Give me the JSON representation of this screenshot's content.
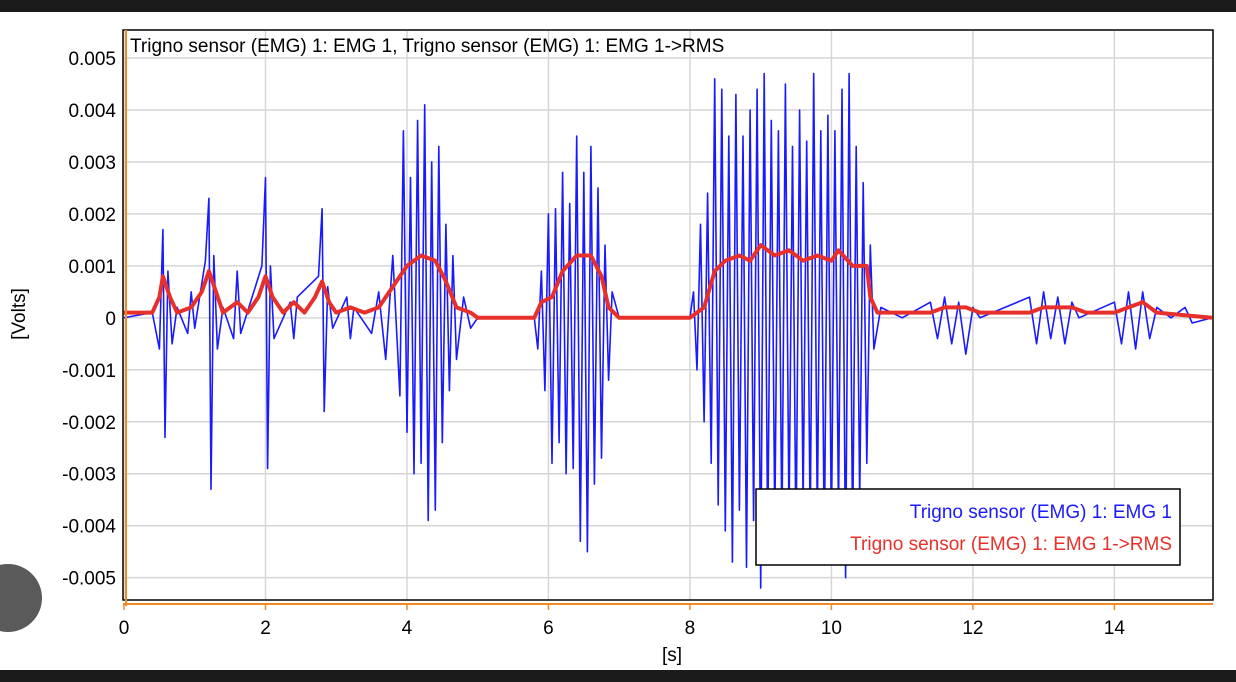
{
  "chart_data": {
    "type": "line",
    "title": "Trigno sensor (EMG) 1: EMG 1, Trigno sensor (EMG) 1: EMG 1->RMS",
    "xlabel": "[s]",
    "ylabel": "[Volts]",
    "xlim": [
      0,
      15.38
    ],
    "ylim": [
      -0.00543,
      0.00552
    ],
    "xticks": [
      0,
      2,
      4,
      6,
      8,
      10,
      12,
      14
    ],
    "yticks": [
      0.005,
      0.004,
      0.003,
      0.002,
      0.001,
      0,
      -0.001,
      -0.002,
      -0.003,
      -0.004,
      -0.005
    ],
    "grid": true,
    "legend": "lower right",
    "series": [
      {
        "name": "Trigno sensor (EMG) 1: EMG 1",
        "color": "#1a1aff",
        "x": [
          0,
          0.4,
          0.5,
          0.55,
          0.58,
          0.62,
          0.68,
          0.75,
          0.9,
          0.95,
          1.0,
          1.15,
          1.2,
          1.23,
          1.27,
          1.32,
          1.4,
          1.55,
          1.6,
          1.65,
          1.95,
          2.0,
          2.03,
          2.07,
          2.12,
          2.35,
          2.4,
          2.45,
          2.75,
          2.8,
          2.83,
          2.88,
          2.95,
          3.15,
          3.2,
          3.25,
          3.5,
          3.6,
          3.7,
          3.8,
          3.9,
          3.95,
          4.0,
          4.05,
          4.1,
          4.15,
          4.2,
          4.25,
          4.3,
          4.35,
          4.4,
          4.45,
          4.5,
          4.55,
          4.6,
          4.65,
          4.7,
          4.8,
          4.9,
          5.0,
          5.8,
          5.85,
          5.9,
          5.95,
          6.0,
          6.05,
          6.1,
          6.15,
          6.2,
          6.25,
          6.3,
          6.35,
          6.4,
          6.45,
          6.5,
          6.55,
          6.6,
          6.65,
          6.7,
          6.75,
          6.8,
          6.85,
          6.9,
          7.0,
          8.0,
          8.05,
          8.1,
          8.15,
          8.2,
          8.25,
          8.3,
          8.35,
          8.4,
          8.45,
          8.5,
          8.55,
          8.6,
          8.65,
          8.7,
          8.75,
          8.8,
          8.85,
          8.9,
          8.95,
          9.0,
          9.05,
          9.1,
          9.15,
          9.2,
          9.25,
          9.3,
          9.35,
          9.4,
          9.45,
          9.5,
          9.55,
          9.6,
          9.65,
          9.7,
          9.75,
          9.8,
          9.85,
          9.9,
          9.95,
          10.0,
          10.05,
          10.1,
          10.15,
          10.2,
          10.25,
          10.3,
          10.35,
          10.4,
          10.45,
          10.5,
          10.55,
          10.6,
          10.7,
          11.0,
          11.4,
          11.5,
          11.6,
          11.7,
          11.8,
          11.9,
          12.0,
          12.1,
          12.8,
          12.9,
          13.0,
          13.1,
          13.2,
          13.3,
          13.4,
          13.5,
          14.0,
          14.1,
          14.2,
          14.3,
          14.4,
          14.5,
          14.6,
          14.8,
          15.0,
          15.1,
          15.38
        ],
        "values": [
          0,
          0.0001,
          -0.0006,
          0.0017,
          -0.0023,
          0.0009,
          -0.0005,
          0.0002,
          -0.0003,
          0.0005,
          -0.0002,
          0.0011,
          0.0023,
          -0.0033,
          0.0012,
          -0.0006,
          0.0002,
          -0.0004,
          0.0009,
          -0.0003,
          0.001,
          0.0027,
          -0.0029,
          0.001,
          -0.0004,
          0.0003,
          -0.0004,
          0.0004,
          0.0008,
          0.0021,
          -0.0018,
          0.0006,
          -0.0002,
          0.0004,
          -0.0004,
          0.0002,
          -0.0003,
          0.0005,
          -0.0008,
          0.0012,
          -0.0015,
          0.0036,
          -0.0022,
          0.0027,
          -0.003,
          0.0038,
          -0.0028,
          0.0041,
          -0.0039,
          0.003,
          -0.0037,
          0.0033,
          -0.0024,
          0.0018,
          -0.0014,
          0.0012,
          -0.0008,
          0.0004,
          -0.0002,
          0,
          0,
          -0.0006,
          0.0009,
          -0.0014,
          0.002,
          -0.0028,
          0.0021,
          -0.0024,
          0.0028,
          -0.003,
          0.0022,
          -0.0029,
          0.0035,
          -0.0043,
          0.0028,
          -0.0045,
          0.0033,
          -0.0032,
          0.0025,
          -0.0027,
          0.0014,
          -0.0012,
          0.0005,
          0,
          0,
          0.0005,
          -0.001,
          0.0018,
          -0.002,
          0.0024,
          -0.0028,
          0.0046,
          -0.0036,
          0.0044,
          -0.0041,
          0.0035,
          -0.0047,
          0.0043,
          -0.0037,
          0.0035,
          -0.0048,
          0.004,
          -0.0039,
          0.0044,
          -0.0052,
          0.0047,
          -0.0044,
          0.0038,
          -0.004,
          0.0036,
          -0.0042,
          0.0045,
          -0.0039,
          0.0033,
          -0.0044,
          0.004,
          -0.0036,
          0.0034,
          -0.0041,
          0.0047,
          -0.0039,
          0.0036,
          -0.0045,
          0.0039,
          -0.0042,
          0.0036,
          -0.0038,
          0.0044,
          -0.005,
          0.0047,
          -0.0043,
          0.0033,
          -0.0035,
          0.0026,
          -0.0028,
          0.0014,
          -0.0006,
          0.0002,
          0,
          0.0003,
          -0.0004,
          0.0004,
          -0.0005,
          0.0003,
          -0.0007,
          0.0002,
          0,
          0.0004,
          -0.0005,
          0.0005,
          -0.0004,
          0.0004,
          -0.0005,
          0.0003,
          0,
          0.0003,
          -0.0005,
          0.0005,
          -0.0006,
          0.0005,
          -0.0004,
          0.0002,
          0,
          0.0002,
          -0.0001,
          0
        ]
      },
      {
        "name": "Trigno sensor (EMG) 1: EMG 1->RMS",
        "color": "#e8302a",
        "x": [
          0,
          0.4,
          0.5,
          0.55,
          0.65,
          0.75,
          0.95,
          1.1,
          1.2,
          1.3,
          1.4,
          1.6,
          1.75,
          1.9,
          2.0,
          2.1,
          2.25,
          2.4,
          2.55,
          2.7,
          2.8,
          2.9,
          3.0,
          3.2,
          3.4,
          3.6,
          3.8,
          4.0,
          4.2,
          4.4,
          4.55,
          4.7,
          4.9,
          5.0,
          5.8,
          5.9,
          6.05,
          6.2,
          6.4,
          6.6,
          6.75,
          6.85,
          7.0,
          8.0,
          8.2,
          8.35,
          8.5,
          8.7,
          8.85,
          9.0,
          9.2,
          9.4,
          9.6,
          9.8,
          10.0,
          10.1,
          10.3,
          10.5,
          10.55,
          10.65,
          11.4,
          11.6,
          11.9,
          12.1,
          12.8,
          13.0,
          13.4,
          13.6,
          14.0,
          14.2,
          14.4,
          14.6,
          15.38
        ],
        "values": [
          0.0001,
          0.0001,
          0.0004,
          0.0008,
          0.0004,
          0.0001,
          0.0002,
          0.0005,
          0.0009,
          0.0005,
          0.0001,
          0.0003,
          0.0001,
          0.0004,
          0.0008,
          0.0004,
          0.0001,
          0.0003,
          0.0001,
          0.0004,
          0.0007,
          0.0003,
          0.0001,
          0.0002,
          0.0001,
          0.0002,
          0.0006,
          0.001,
          0.0012,
          0.0011,
          0.0007,
          0.0002,
          0.0001,
          0,
          0,
          0.0003,
          0.0004,
          0.0009,
          0.0012,
          0.0012,
          0.0008,
          0.0002,
          0,
          0,
          0.0002,
          0.0009,
          0.0011,
          0.0012,
          0.0011,
          0.0014,
          0.0012,
          0.0013,
          0.0011,
          0.0012,
          0.0011,
          0.0013,
          0.001,
          0.001,
          0.0004,
          0.0001,
          0.0001,
          0.0002,
          0.0002,
          0.0001,
          0.0001,
          0.0002,
          0.0002,
          0.0001,
          0.0001,
          0.0002,
          0.0003,
          0.0001,
          0
        ]
      }
    ]
  }
}
